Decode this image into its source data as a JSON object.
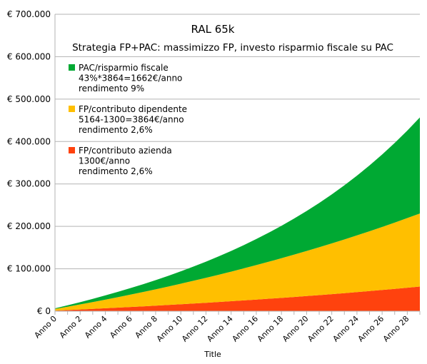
{
  "chart_data": {
    "type": "area",
    "stacked": true,
    "title": "RAL 65k",
    "subtitle": "Strategia FP+PAC: massimizzo FP, investo risparmio fiscale su PAC",
    "xlabel": "Title",
    "ylabel": "",
    "ylim": [
      0,
      700000
    ],
    "yticks": [
      "€ 0",
      "€ 100.000",
      "€ 200.000",
      "€ 300.000",
      "€ 400.000",
      "€ 500.000",
      "€ 600.000",
      "€ 700.000"
    ],
    "ytick_values": [
      0,
      100000,
      200000,
      300000,
      400000,
      500000,
      600000,
      700000
    ],
    "x": [
      0,
      1,
      2,
      3,
      4,
      5,
      6,
      7,
      8,
      9,
      10,
      11,
      12,
      13,
      14,
      15,
      16,
      17,
      18,
      19,
      20,
      21,
      22,
      23,
      24,
      25,
      26,
      27,
      28,
      29
    ],
    "xtick_labels": [
      "Anno 0",
      "Anno 2",
      "Anno 4",
      "Anno 6",
      "Anno 8",
      "Anno 10",
      "Anno 12",
      "Anno 14",
      "Anno 16",
      "Anno 18",
      "Anno 20",
      "Anno 22",
      "Anno 24",
      "Anno 26",
      "Anno 28"
    ],
    "xtick_values": [
      0,
      2,
      4,
      6,
      8,
      10,
      12,
      14,
      16,
      18,
      20,
      22,
      24,
      26,
      28
    ],
    "grid": true,
    "legend_position": "top-left",
    "series": [
      {
        "name": "FP/contributo azienda",
        "desc": [
          "1300€/anno",
          "rendimento 2,6%"
        ],
        "color": "#ff420e",
        "values": [
          1300,
          2634,
          4002,
          5406,
          6847,
          8325,
          9841,
          11397,
          12993,
          14631,
          16311,
          18035,
          19804,
          21619,
          23481,
          25392,
          27352,
          29363,
          31426,
          33543,
          35715,
          37944,
          40231,
          42577,
          44984,
          47454,
          49988,
          52588,
          55255,
          57992
        ]
      },
      {
        "name": "FP/contributo dipendente",
        "desc": [
          "5164-1300=3864€/anno",
          "rendimento 2,6%"
        ],
        "color": "#ffbf00",
        "values": [
          3864,
          7828,
          11896,
          16069,
          20351,
          24745,
          29253,
          33878,
          38623,
          43492,
          48486,
          53611,
          58869,
          64264,
          69799,
          75477,
          81304,
          87282,
          93415,
          99707,
          106162,
          112787,
          119583,
          126557,
          133712,
          141052,
          148584,
          156313,
          164243,
          172379
        ]
      },
      {
        "name": "PAC/risparmio fiscale",
        "desc": [
          "43%*3864=1662€/anno",
          "rendimento 9%"
        ],
        "color": "#00a933",
        "values": [
          1662,
          3474,
          5448,
          7600,
          9946,
          12503,
          15290,
          18329,
          21640,
          25250,
          29185,
          33473,
          38148,
          43243,
          48797,
          54851,
          61450,
          68642,
          76482,
          85027,
          94342,
          104495,
          115561,
          127624,
          140772,
          155103,
          170724,
          187751,
          206311,
          226541
        ]
      }
    ]
  }
}
